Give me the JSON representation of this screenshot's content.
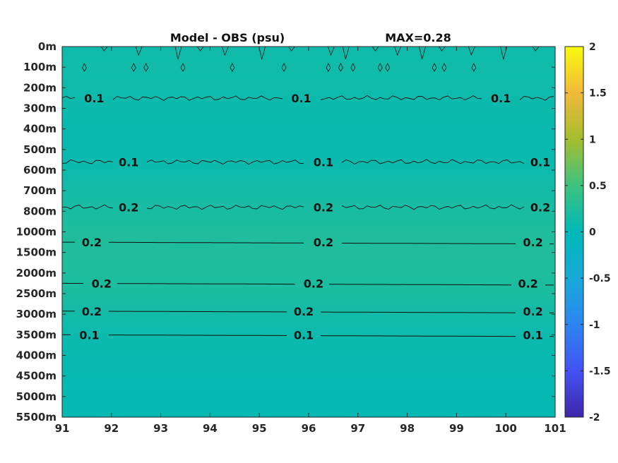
{
  "chart_data": {
    "type": "heatmap",
    "title": "Model - OBS (psu)",
    "max_label": "MAX=0.28",
    "x_ticks": [
      "91",
      "92",
      "93",
      "94",
      "95",
      "96",
      "97",
      "98",
      "99",
      "100",
      "101"
    ],
    "x_range": [
      91,
      101
    ],
    "y_ticks": [
      "0m",
      "100m",
      "200m",
      "300m",
      "400m",
      "500m",
      "600m",
      "700m",
      "800m",
      "1000m",
      "1500m",
      "2000m",
      "2500m",
      "3000m",
      "3500m",
      "4000m",
      "4500m",
      "5000m",
      "5500m"
    ],
    "y_direction": "downward",
    "colorbar": {
      "colormap": "parula",
      "range": [
        -2,
        2
      ],
      "ticks": [
        "2",
        "1.5",
        "1",
        "0.5",
        "0",
        "-0.5",
        "-1",
        "-1.5",
        "-2"
      ],
      "placement": "right"
    },
    "depth_profile": {
      "depths": [
        "0m",
        "100m",
        "200m",
        "300m",
        "400m",
        "500m",
        "600m",
        "700m",
        "800m",
        "1000m",
        "1500m",
        "2000m",
        "2500m",
        "3000m",
        "3500m",
        "4000m",
        "4500m",
        "5000m",
        "5500m"
      ],
      "values": [
        0.12,
        0.13,
        0.12,
        0.09,
        0.07,
        0.07,
        0.1,
        0.16,
        0.2,
        0.25,
        0.26,
        0.24,
        0.21,
        0.15,
        0.1,
        0.06,
        0.05,
        0.04,
        0.04
      ]
    },
    "contours": [
      {
        "level": "0.1",
        "depth_index": 2.5,
        "rough": true,
        "labels_at": [
          91.65,
          95.85,
          99.9
        ]
      },
      {
        "level": "0.1",
        "depth_index": 5.6,
        "rough": true,
        "labels_at": [
          92.35,
          96.3,
          100.7
        ]
      },
      {
        "level": "0.2",
        "depth_index": 7.8,
        "rough": true,
        "labels_at": [
          92.35,
          96.3,
          100.7
        ]
      },
      {
        "level": "0.2",
        "depth_index": 9.5,
        "rough": false,
        "labels_at": [
          91.6,
          96.3,
          100.55
        ]
      },
      {
        "level": "0.2",
        "depth_index": 11.5,
        "rough": false,
        "labels_at": [
          91.8,
          96.1,
          100.45
        ]
      },
      {
        "level": "0.2",
        "depth_index": 12.85,
        "rough": false,
        "labels_at": [
          91.6,
          95.9,
          100.55
        ]
      },
      {
        "level": "0.1",
        "depth_index": 14.0,
        "rough": false,
        "labels_at": [
          91.55,
          95.9,
          100.55
        ]
      }
    ]
  }
}
